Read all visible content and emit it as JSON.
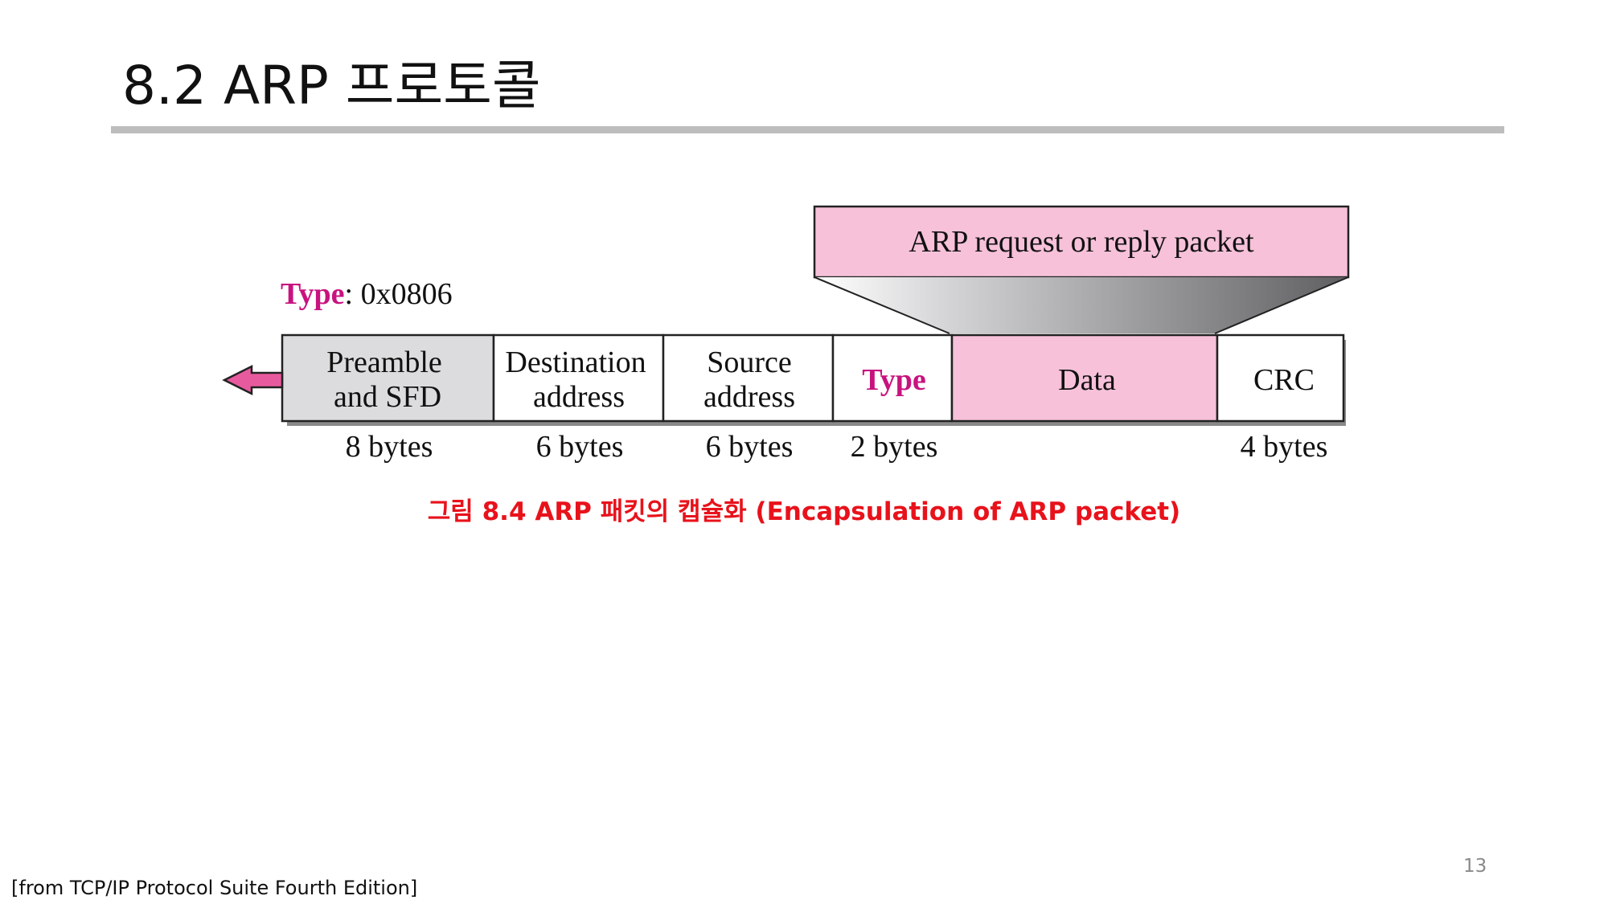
{
  "slide": {
    "title": "8.2 ARP 프로토콜",
    "caption": "그림 8.4 ARP 패킷의 캡슐화 (Encapsulation of ARP packet)",
    "source_note": "[from TCP/IP Protocol Suite Fourth Edition]",
    "page_number": "13"
  },
  "figure": {
    "type_field_label": "Type",
    "type_field_value": ": 0x0806",
    "arp_packet_label": "ARP request or reply packet",
    "fields": [
      {
        "line1": "Preamble",
        "line2": "and SFD",
        "size": "8 bytes"
      },
      {
        "line1": "Destination",
        "line2": "address",
        "size": "6 bytes"
      },
      {
        "line1": "Source",
        "line2": "address",
        "size": "6 bytes"
      },
      {
        "line1": "Type",
        "size": "2 bytes"
      },
      {
        "line1": "Data"
      },
      {
        "line1": "CRC",
        "size": "4 bytes"
      }
    ]
  },
  "colors": {
    "accent_magenta": "#c8137f",
    "arp_pink": "#f7c1da",
    "preamble_gray": "#dcdcde",
    "arrow_pink": "#e85a9e",
    "caption_red": "#e8121b",
    "rule_gray": "#bdbdbd"
  }
}
